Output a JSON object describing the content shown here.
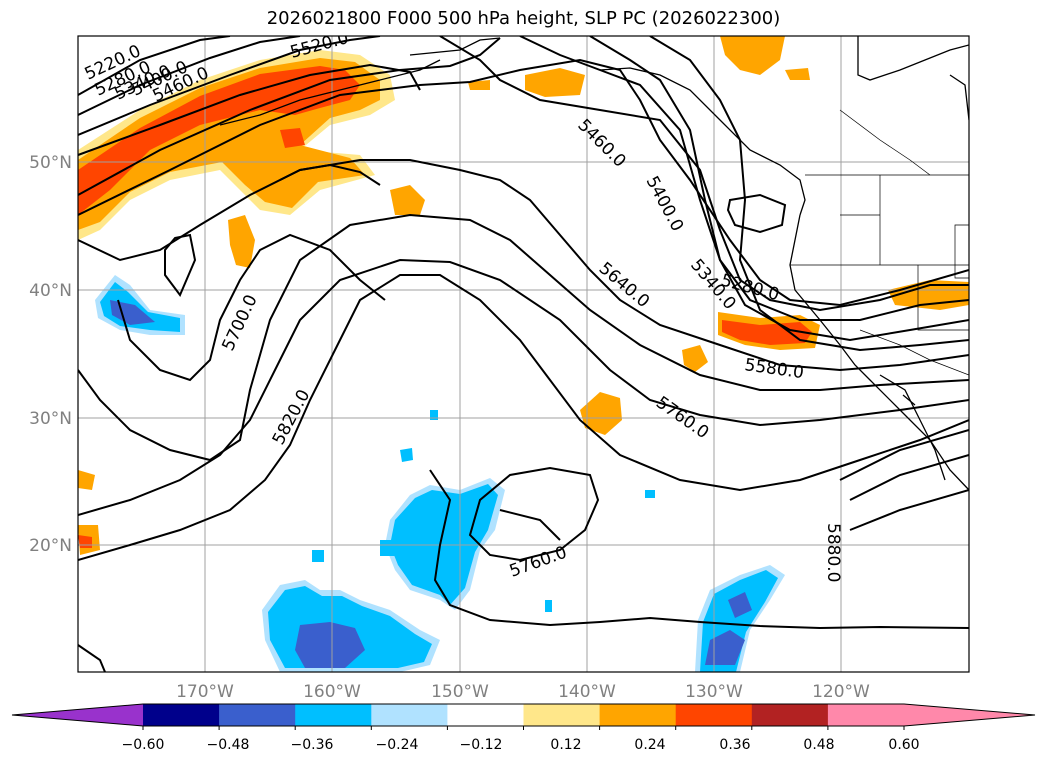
{
  "title": "2026021800 F000 500 hPa height, SLP PC (2026022300)",
  "map": {
    "lat_labels": [
      "50°N",
      "40°N",
      "30°N",
      "20°N"
    ],
    "lon_labels": [
      "170°W",
      "160°W",
      "150°W",
      "140°W",
      "130°W",
      "120°W"
    ],
    "contour_labels": [
      "5220.0",
      "5280.0",
      "5340.0",
      "5400.0",
      "5460.0",
      "5520.0",
      "5460.0",
      "5400.0",
      "5340.0",
      "5280.0",
      "5640.0",
      "5580.0",
      "5700.0",
      "5820.0",
      "5760.0",
      "5760.0",
      "5880.0"
    ]
  },
  "colorbar": {
    "ticks": [
      "−0.60",
      "−0.48",
      "−0.36",
      "−0.24",
      "−0.12",
      "0.12",
      "0.24",
      "0.36",
      "0.48",
      "0.60"
    ],
    "colors": [
      "#9932cc",
      "#00008b",
      "#3a5fcd",
      "#00bfff",
      "#b0e2ff",
      "#ffffff",
      "#ffe78a",
      "#ffa500",
      "#ff4500",
      "#b22222",
      "#ff88aa",
      "#ff88aa"
    ]
  }
}
